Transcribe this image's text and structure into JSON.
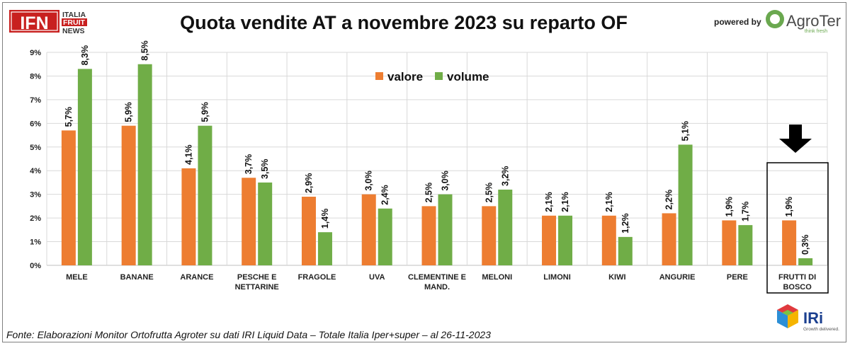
{
  "header": {
    "title": "Quota vendite AT a novembre 2023 su reparto OF",
    "left_logo": {
      "mark": "IFN",
      "line1": "ITALIA",
      "line2": "FRUIT",
      "line3": "NEWS"
    },
    "powered_by": "powered by",
    "right_logo": {
      "name": "AgroTer",
      "tagline": "think fresh"
    }
  },
  "footer": {
    "source": "Fonte: Elaborazioni Monitor Ortofrutta Agroter su dati IRI Liquid Data – Totale Italia Iper+super –  al 26-11-2023",
    "iri_logo": {
      "name": "IRi",
      "tagline": "Growth delivered."
    }
  },
  "colors": {
    "valore": "#ED7D31",
    "volume": "#70AD47",
    "grid": "#d9d9d9",
    "axis": "#bfbfbf"
  },
  "chart_data": {
    "type": "bar",
    "title": "Quota vendite AT a novembre 2023 su reparto OF",
    "xlabel": "",
    "ylabel": "",
    "ylim": [
      0,
      9
    ],
    "y_ticks": [
      "0%",
      "1%",
      "2%",
      "3%",
      "4%",
      "5%",
      "6%",
      "7%",
      "8%",
      "9%"
    ],
    "grid": true,
    "legend": "top-center",
    "categories": [
      [
        "MELE"
      ],
      [
        "BANANE"
      ],
      [
        "ARANCE"
      ],
      [
        "PESCHE E",
        "NETTARINE"
      ],
      [
        "FRAGOLE"
      ],
      [
        "UVA"
      ],
      [
        "CLEMENTINE E",
        "MAND."
      ],
      [
        "MELONI"
      ],
      [
        "LIMONI"
      ],
      [
        "KIWI"
      ],
      [
        "ANGURIE"
      ],
      [
        "PERE"
      ],
      [
        "FRUTTI DI",
        "BOSCO"
      ]
    ],
    "series": [
      {
        "name": "valore",
        "values": [
          5.7,
          5.9,
          4.1,
          3.7,
          2.9,
          3.0,
          2.5,
          2.5,
          2.1,
          2.1,
          2.2,
          1.9,
          1.9
        ],
        "labels": [
          "5,7%",
          "5,9%",
          "4,1%",
          "3,7%",
          "2,9%",
          "3,0%",
          "2,5%",
          "2,5%",
          "2,1%",
          "2,1%",
          "2,2%",
          "1,9%",
          "1,9%"
        ]
      },
      {
        "name": "volume",
        "values": [
          8.3,
          8.5,
          5.9,
          3.5,
          1.4,
          2.4,
          3.0,
          3.2,
          2.1,
          1.2,
          5.1,
          1.7,
          0.3
        ],
        "labels": [
          "8,3%",
          "8,5%",
          "5,9%",
          "3,5%",
          "1,4%",
          "2,4%",
          "3,0%",
          "3,2%",
          "2,1%",
          "1,2%",
          "5,1%",
          "1,7%",
          "0,3%"
        ]
      }
    ],
    "highlight": {
      "category_index": 12,
      "marker": "down-arrow"
    }
  }
}
